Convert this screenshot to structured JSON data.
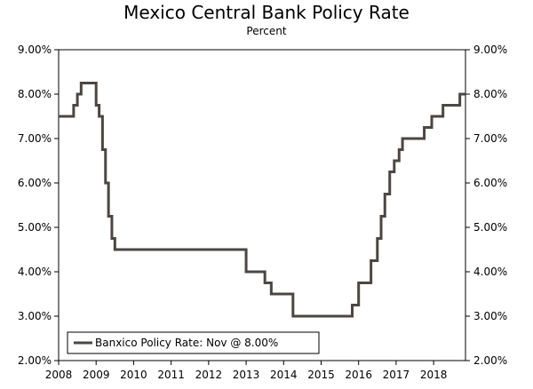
{
  "chart_data": {
    "type": "line",
    "title": "Mexico Central Bank Policy Rate",
    "subtitle": "Percent",
    "xlabel": "",
    "ylabel": "",
    "xlim": [
      2008,
      2018.85
    ],
    "ylim": [
      2.0,
      9.0
    ],
    "x_ticks": [
      2008,
      2009,
      2010,
      2011,
      2012,
      2013,
      2014,
      2015,
      2016,
      2017,
      2018
    ],
    "x_tick_labels": [
      "2008",
      "2009",
      "2010",
      "2011",
      "2012",
      "2013",
      "2014",
      "2015",
      "2016",
      "2017",
      "2018"
    ],
    "y_ticks": [
      2,
      3,
      4,
      5,
      6,
      7,
      8,
      9
    ],
    "y_tick_labels": [
      "2.00%",
      "3.00%",
      "4.00%",
      "5.00%",
      "6.00%",
      "7.00%",
      "8.00%",
      "9.00%"
    ],
    "legend_position": "bottom-left",
    "series": [
      {
        "name": "Banxico Policy Rate: Nov @ 8.00%",
        "color": "#4d4640",
        "step": true,
        "points": [
          [
            2008.0,
            7.5
          ],
          [
            2008.4,
            7.75
          ],
          [
            2008.5,
            8.0
          ],
          [
            2008.6,
            8.25
          ],
          [
            2009.0,
            7.75
          ],
          [
            2009.08,
            7.5
          ],
          [
            2009.17,
            6.75
          ],
          [
            2009.25,
            6.0
          ],
          [
            2009.33,
            5.25
          ],
          [
            2009.42,
            4.75
          ],
          [
            2009.5,
            4.5
          ],
          [
            2013.0,
            4.0
          ],
          [
            2013.5,
            3.75
          ],
          [
            2013.67,
            3.5
          ],
          [
            2014.25,
            3.0
          ],
          [
            2015.83,
            3.25
          ],
          [
            2016.0,
            3.75
          ],
          [
            2016.33,
            4.25
          ],
          [
            2016.5,
            4.75
          ],
          [
            2016.6,
            5.25
          ],
          [
            2016.7,
            5.75
          ],
          [
            2016.83,
            6.25
          ],
          [
            2016.95,
            6.5
          ],
          [
            2017.08,
            6.75
          ],
          [
            2017.17,
            7.0
          ],
          [
            2017.58,
            7.0
          ],
          [
            2017.75,
            7.25
          ],
          [
            2017.95,
            7.5
          ],
          [
            2018.25,
            7.75
          ],
          [
            2018.7,
            8.0
          ],
          [
            2018.85,
            8.0
          ]
        ]
      }
    ]
  }
}
